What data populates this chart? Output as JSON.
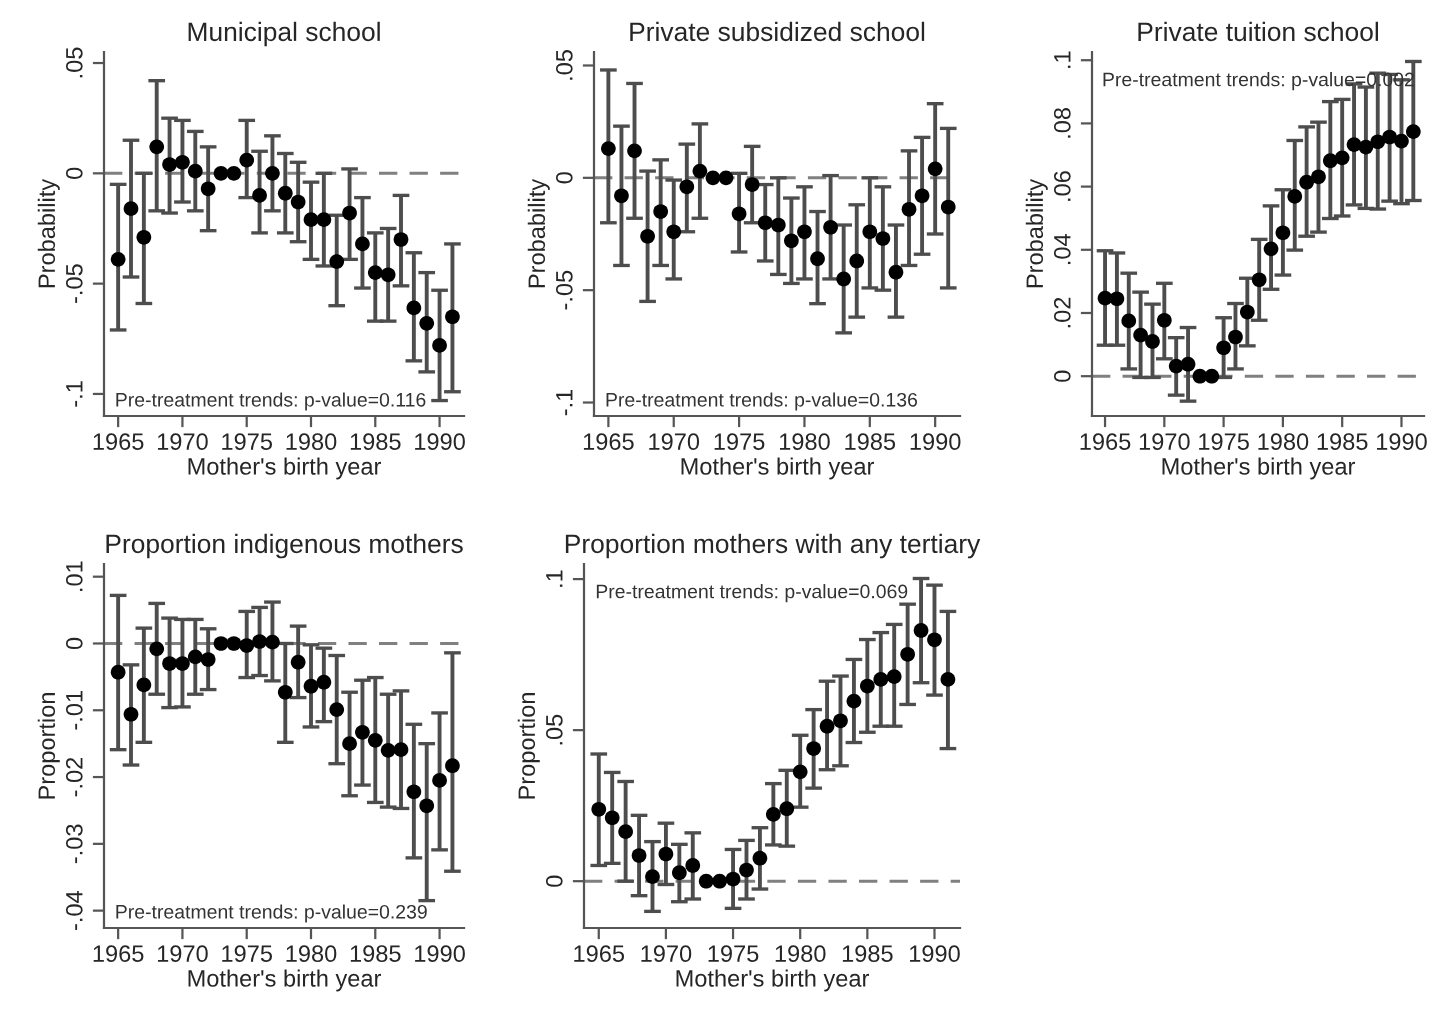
{
  "chart_data": [
    {
      "type": "scatter",
      "title": "Municipal school",
      "xlabel": "Mother's birth year",
      "ylabel": "Probability",
      "marker": "circle",
      "grid": false,
      "legend": false,
      "x": [
        1965,
        1966,
        1967,
        1968,
        1969,
        1970,
        1971,
        1972,
        1973,
        1974,
        1975,
        1976,
        1977,
        1978,
        1979,
        1980,
        1981,
        1982,
        1983,
        1984,
        1985,
        1986,
        1987,
        1988,
        1989,
        1990,
        1991
      ],
      "series": [
        {
          "color": "#000000",
          "values": [
            -0.039,
            -0.016,
            -0.029,
            0.012,
            0.004,
            0.005,
            0.001,
            -0.007,
            0,
            0,
            0.006,
            -0.01,
            0,
            -0.009,
            -0.013,
            -0.021,
            -0.021,
            -0.04,
            -0.018,
            -0.032,
            -0.045,
            -0.046,
            -0.03,
            -0.061,
            -0.068,
            -0.078,
            -0.065
          ],
          "errors": [
            [
              -0.071,
              -0.005
            ],
            [
              -0.047,
              0.015
            ],
            [
              -0.059,
              0
            ],
            [
              -0.017,
              0.042
            ],
            [
              -0.018,
              0.025
            ],
            [
              -0.013,
              0.024
            ],
            [
              -0.017,
              0.019
            ],
            [
              -0.026,
              0.012
            ],
            null,
            null,
            [
              -0.011,
              0.024
            ],
            [
              -0.027,
              0.01
            ],
            [
              -0.017,
              0.017
            ],
            [
              -0.027,
              0.009
            ],
            [
              -0.031,
              0.005
            ],
            [
              -0.039,
              -0.004
            ],
            [
              -0.042,
              0
            ],
            [
              -0.06,
              -0.019
            ],
            [
              -0.039,
              0.002
            ],
            [
              -0.052,
              -0.011
            ],
            [
              -0.067,
              -0.027
            ],
            [
              -0.067,
              -0.025
            ],
            [
              -0.051,
              -0.01
            ],
            [
              -0.085,
              -0.036
            ],
            [
              -0.09,
              -0.045
            ],
            [
              -0.103,
              -0.053
            ],
            [
              -0.099,
              -0.032
            ]
          ]
        }
      ],
      "xlim": [
        1963.9,
        1991.9
      ],
      "xticks": [
        1965,
        1970,
        1975,
        1980,
        1985,
        1990
      ],
      "ylim": [
        -0.11,
        0.055
      ],
      "yticks": [
        {
          "value": -0.1,
          "label": "-.1"
        },
        {
          "value": -0.05,
          "label": "-.05"
        },
        0,
        {
          "value": 0.05,
          "label": ".05"
        }
      ],
      "ref_lines": [
        {
          "axis": "y",
          "value": 0,
          "color": "#808080",
          "line_style": "dashed"
        }
      ],
      "annotations": [
        "Pre-treatment trends: p-value=0.116"
      ]
    },
    {
      "type": "scatter",
      "title": "Private subsidized school",
      "xlabel": "Mother's birth year",
      "ylabel": "Probability",
      "marker": "circle",
      "grid": false,
      "legend": false,
      "x": [
        1965,
        1966,
        1967,
        1968,
        1969,
        1970,
        1971,
        1972,
        1973,
        1974,
        1975,
        1976,
        1977,
        1978,
        1979,
        1980,
        1981,
        1982,
        1983,
        1984,
        1985,
        1986,
        1987,
        1988,
        1989,
        1990,
        1991
      ],
      "series": [
        {
          "color": "#000000",
          "values": [
            0.013,
            -0.008,
            0.012,
            -0.026,
            -0.015,
            -0.024,
            -0.004,
            0.003,
            0,
            0,
            -0.016,
            -0.003,
            -0.02,
            -0.021,
            -0.028,
            -0.024,
            -0.036,
            -0.022,
            -0.045,
            -0.037,
            -0.024,
            -0.027,
            -0.042,
            -0.014,
            -0.008,
            0.004,
            -0.013
          ],
          "errors": [
            [
              -0.02,
              0.048
            ],
            [
              -0.039,
              0.023
            ],
            [
              -0.018,
              0.042
            ],
            [
              -0.055,
              0.003
            ],
            [
              -0.039,
              0.008
            ],
            [
              -0.045,
              -0.001
            ],
            [
              -0.024,
              0.015
            ],
            [
              -0.018,
              0.024
            ],
            null,
            null,
            [
              -0.033,
              0.002
            ],
            [
              -0.02,
              0.014
            ],
            [
              -0.037,
              -0.003
            ],
            [
              -0.043,
              0
            ],
            [
              -0.047,
              -0.009
            ],
            [
              -0.045,
              -0.004
            ],
            [
              -0.056,
              -0.015
            ],
            [
              -0.045,
              0.001
            ],
            [
              -0.069,
              -0.021
            ],
            [
              -0.062,
              -0.012
            ],
            [
              -0.049,
              0
            ],
            [
              -0.05,
              -0.004
            ],
            [
              -0.062,
              -0.021
            ],
            [
              -0.039,
              0.012
            ],
            [
              -0.034,
              0.018
            ],
            [
              -0.025,
              0.033
            ],
            [
              -0.049,
              0.022
            ]
          ]
        }
      ],
      "xlim": [
        1963.9,
        1991.9
      ],
      "xticks": [
        1965,
        1970,
        1975,
        1980,
        1985,
        1990
      ],
      "ylim": [
        -0.106,
        0.056
      ],
      "yticks": [
        {
          "value": -0.1,
          "label": "-.1"
        },
        {
          "value": -0.05,
          "label": "-.05"
        },
        0,
        {
          "value": 0.05,
          "label": ".05"
        }
      ],
      "ref_lines": [
        {
          "axis": "y",
          "value": 0,
          "color": "#808080",
          "line_style": "dashed"
        }
      ],
      "annotations": [
        "Pre-treatment trends: p-value=0.136"
      ]
    },
    {
      "type": "scatter",
      "title": "Private tuition school",
      "xlabel": "Mother's birth year",
      "ylabel": "Probability",
      "marker": "circle",
      "grid": false,
      "legend": false,
      "x": [
        1965,
        1966,
        1967,
        1968,
        1969,
        1970,
        1971,
        1972,
        1973,
        1974,
        1975,
        1976,
        1977,
        1978,
        1979,
        1980,
        1981,
        1982,
        1983,
        1984,
        1985,
        1986,
        1987,
        1988,
        1989,
        1990,
        1991
      ],
      "series": [
        {
          "color": "#000000",
          "values": [
            0.0247,
            0.0245,
            0.0175,
            0.013,
            0.011,
            0.0177,
            0.0032,
            0.0038,
            0,
            0,
            0.009,
            0.0124,
            0.0203,
            0.0305,
            0.0403,
            0.0454,
            0.0569,
            0.0614,
            0.0631,
            0.0682,
            0.0691,
            0.0733,
            0.0725,
            0.0742,
            0.0757,
            0.0744,
            0.0774
          ],
          "errors": [
            [
              0.0098,
              0.0397
            ],
            [
              0.0098,
              0.039
            ],
            [
              0.0023,
              0.0326
            ],
            [
              -0.0004,
              0.0266
            ],
            [
              -0.0004,
              0.0228
            ],
            [
              0.0055,
              0.0294
            ],
            [
              -0.006,
              0.0122
            ],
            [
              -0.0079,
              0.0154
            ],
            null,
            null,
            [
              -0.0004,
              0.0185
            ],
            [
              0.0023,
              0.023
            ],
            [
              0.0096,
              0.031
            ],
            [
              0.0177,
              0.0433
            ],
            [
              0.0275,
              0.0539
            ],
            [
              0.032,
              0.059
            ],
            [
              0.0399,
              0.0746
            ],
            [
              0.0443,
              0.0789
            ],
            [
              0.0456,
              0.0804
            ],
            [
              0.0499,
              0.0869
            ],
            [
              0.0507,
              0.0876
            ],
            [
              0.0542,
              0.0925
            ],
            [
              0.0531,
              0.0915
            ],
            [
              0.0529,
              0.0959
            ],
            [
              0.0554,
              0.0955
            ],
            [
              0.0546,
              0.0938
            ],
            [
              0.0556,
              0.0996
            ]
          ]
        }
      ],
      "xlim": [
        1963.9,
        1991.9
      ],
      "xticks": [
        1965,
        1970,
        1975,
        1980,
        1985,
        1990
      ],
      "ylim": [
        -0.0126,
        0.1026
      ],
      "yticks": [
        0,
        {
          "value": 0.02,
          "label": ".02"
        },
        {
          "value": 0.04,
          "label": ".04"
        },
        {
          "value": 0.06,
          "label": ".06"
        },
        {
          "value": 0.08,
          "label": ".08"
        },
        {
          "value": 0.1,
          "label": ".1"
        }
      ],
      "ref_lines": [
        {
          "axis": "y",
          "value": 0,
          "color": "#808080",
          "line_style": "dashed"
        }
      ],
      "annotations": [
        "Pre-treatment trends: p-value=0.002"
      ]
    },
    {
      "type": "scatter",
      "title": "Proportion indigenous mothers",
      "xlabel": "Mother's birth year",
      "ylabel": "Proportion",
      "marker": "circle",
      "grid": false,
      "legend": false,
      "x": [
        1965,
        1966,
        1967,
        1968,
        1969,
        1970,
        1971,
        1972,
        1973,
        1974,
        1975,
        1976,
        1977,
        1978,
        1979,
        1980,
        1981,
        1982,
        1983,
        1984,
        1985,
        1986,
        1987,
        1988,
        1989,
        1990,
        1991
      ],
      "series": [
        {
          "color": "#000000",
          "values": [
            -0.0043,
            -0.0106,
            -0.0062,
            -0.0008,
            -0.003,
            -0.003,
            -0.002,
            -0.0024,
            0,
            0,
            -0.0003,
            0.0003,
            0.0002,
            -0.0073,
            -0.0028,
            -0.0064,
            -0.0058,
            -0.0099,
            -0.015,
            -0.0133,
            -0.0145,
            -0.016,
            -0.0159,
            -0.0222,
            -0.0243,
            -0.0205,
            -0.0183
          ],
          "errors": [
            [
              -0.0159,
              0.0072
            ],
            [
              -0.0182,
              -0.0032
            ],
            [
              -0.0148,
              0.0023
            ],
            [
              -0.0076,
              0.006
            ],
            [
              -0.0096,
              0.0038
            ],
            [
              -0.0095,
              0.0036
            ],
            [
              -0.0076,
              0.0036
            ],
            [
              -0.0069,
              0.0022
            ],
            null,
            null,
            [
              -0.0051,
              0.0048
            ],
            [
              -0.0048,
              0.0054
            ],
            [
              -0.0056,
              0.0062
            ],
            [
              -0.0148,
              0
            ],
            [
              -0.0081,
              0.0026
            ],
            [
              -0.0125,
              -0.0002
            ],
            [
              -0.0117,
              -0.0007
            ],
            [
              -0.018,
              -0.0018
            ],
            [
              -0.0228,
              -0.0073
            ],
            [
              -0.0212,
              -0.0055
            ],
            [
              -0.0238,
              -0.0051
            ],
            [
              -0.0245,
              -0.0076
            ],
            [
              -0.0247,
              -0.0071
            ],
            [
              -0.0321,
              -0.0121
            ],
            [
              -0.0385,
              -0.015
            ],
            [
              -0.0309,
              -0.0104
            ],
            [
              -0.0341,
              -0.0014
            ]
          ]
        }
      ],
      "xlim": [
        1963.9,
        1991.9
      ],
      "xticks": [
        1965,
        1970,
        1975,
        1980,
        1985,
        1990
      ],
      "ylim": [
        -0.0426,
        0.0119
      ],
      "yticks": [
        {
          "value": -0.04,
          "label": "-.04"
        },
        {
          "value": -0.03,
          "label": "-.03"
        },
        {
          "value": -0.02,
          "label": "-.02"
        },
        {
          "value": -0.01,
          "label": "-.01"
        },
        0,
        {
          "value": 0.01,
          "label": ".01"
        }
      ],
      "ref_lines": [
        {
          "axis": "y",
          "value": 0,
          "color": "#808080",
          "line_style": "dashed"
        }
      ],
      "annotations": [
        "Pre-treatment trends: p-value=0.239"
      ]
    },
    {
      "type": "scatter",
      "title": "Proportion mothers with any tertiary",
      "xlabel": "Mother's birth year",
      "ylabel": "Proportion",
      "marker": "circle",
      "grid": false,
      "legend": false,
      "x": [
        1965,
        1966,
        1967,
        1968,
        1969,
        1970,
        1971,
        1972,
        1973,
        1974,
        1975,
        1976,
        1977,
        1978,
        1979,
        1980,
        1981,
        1982,
        1983,
        1984,
        1985,
        1986,
        1987,
        1988,
        1989,
        1990,
        1991
      ],
      "series": [
        {
          "color": "#000000",
          "values": [
            0.0238,
            0.021,
            0.0164,
            0.0085,
            0.0015,
            0.009,
            0.0028,
            0.0052,
            0,
            0,
            0.0007,
            0.0037,
            0.0076,
            0.0221,
            0.024,
            0.0362,
            0.0439,
            0.0513,
            0.0531,
            0.0596,
            0.0646,
            0.0668,
            0.0677,
            0.0751,
            0.083,
            0.0799,
            0.0668
          ],
          "errors": [
            [
              0.0052,
              0.0421
            ],
            [
              0.0059,
              0.036
            ],
            [
              0,
              0.033
            ],
            [
              -0.0048,
              0.0218
            ],
            [
              -0.01,
              0.0131
            ],
            [
              -0.0011,
              0.0192
            ],
            [
              -0.0068,
              0.0122
            ],
            [
              -0.0059,
              0.016
            ],
            null,
            null,
            [
              -0.009,
              0.0105
            ],
            [
              -0.0059,
              0.0135
            ],
            [
              -0.0026,
              0.0177
            ],
            [
              0.012,
              0.0323
            ],
            [
              0.0116,
              0.0367
            ],
            [
              0.0245,
              0.0483
            ],
            [
              0.0308,
              0.0568
            ],
            [
              0.0369,
              0.0662
            ],
            [
              0.0382,
              0.0679
            ],
            [
              0.0459,
              0.0734
            ],
            [
              0.0493,
              0.08
            ],
            [
              0.0513,
              0.0823
            ],
            [
              0.0513,
              0.085
            ],
            [
              0.0585,
              0.0917
            ],
            [
              0.0657,
              0.1002
            ],
            [
              0.0616,
              0.098
            ],
            [
              0.0439,
              0.0893
            ]
          ]
        }
      ],
      "xlim": [
        1963.9,
        1991.9
      ],
      "xticks": [
        1965,
        1970,
        1975,
        1980,
        1985,
        1990
      ],
      "ylim": [
        -0.0155,
        0.105
      ],
      "yticks": [
        0,
        {
          "value": 0.05,
          "label": ".05"
        },
        {
          "value": 0.1,
          "label": ".1"
        }
      ],
      "ref_lines": [
        {
          "axis": "y",
          "value": 0,
          "color": "#808080",
          "line_style": "dashed"
        }
      ],
      "annotations": [
        "Pre-treatment trends: p-value=0.069"
      ]
    }
  ]
}
